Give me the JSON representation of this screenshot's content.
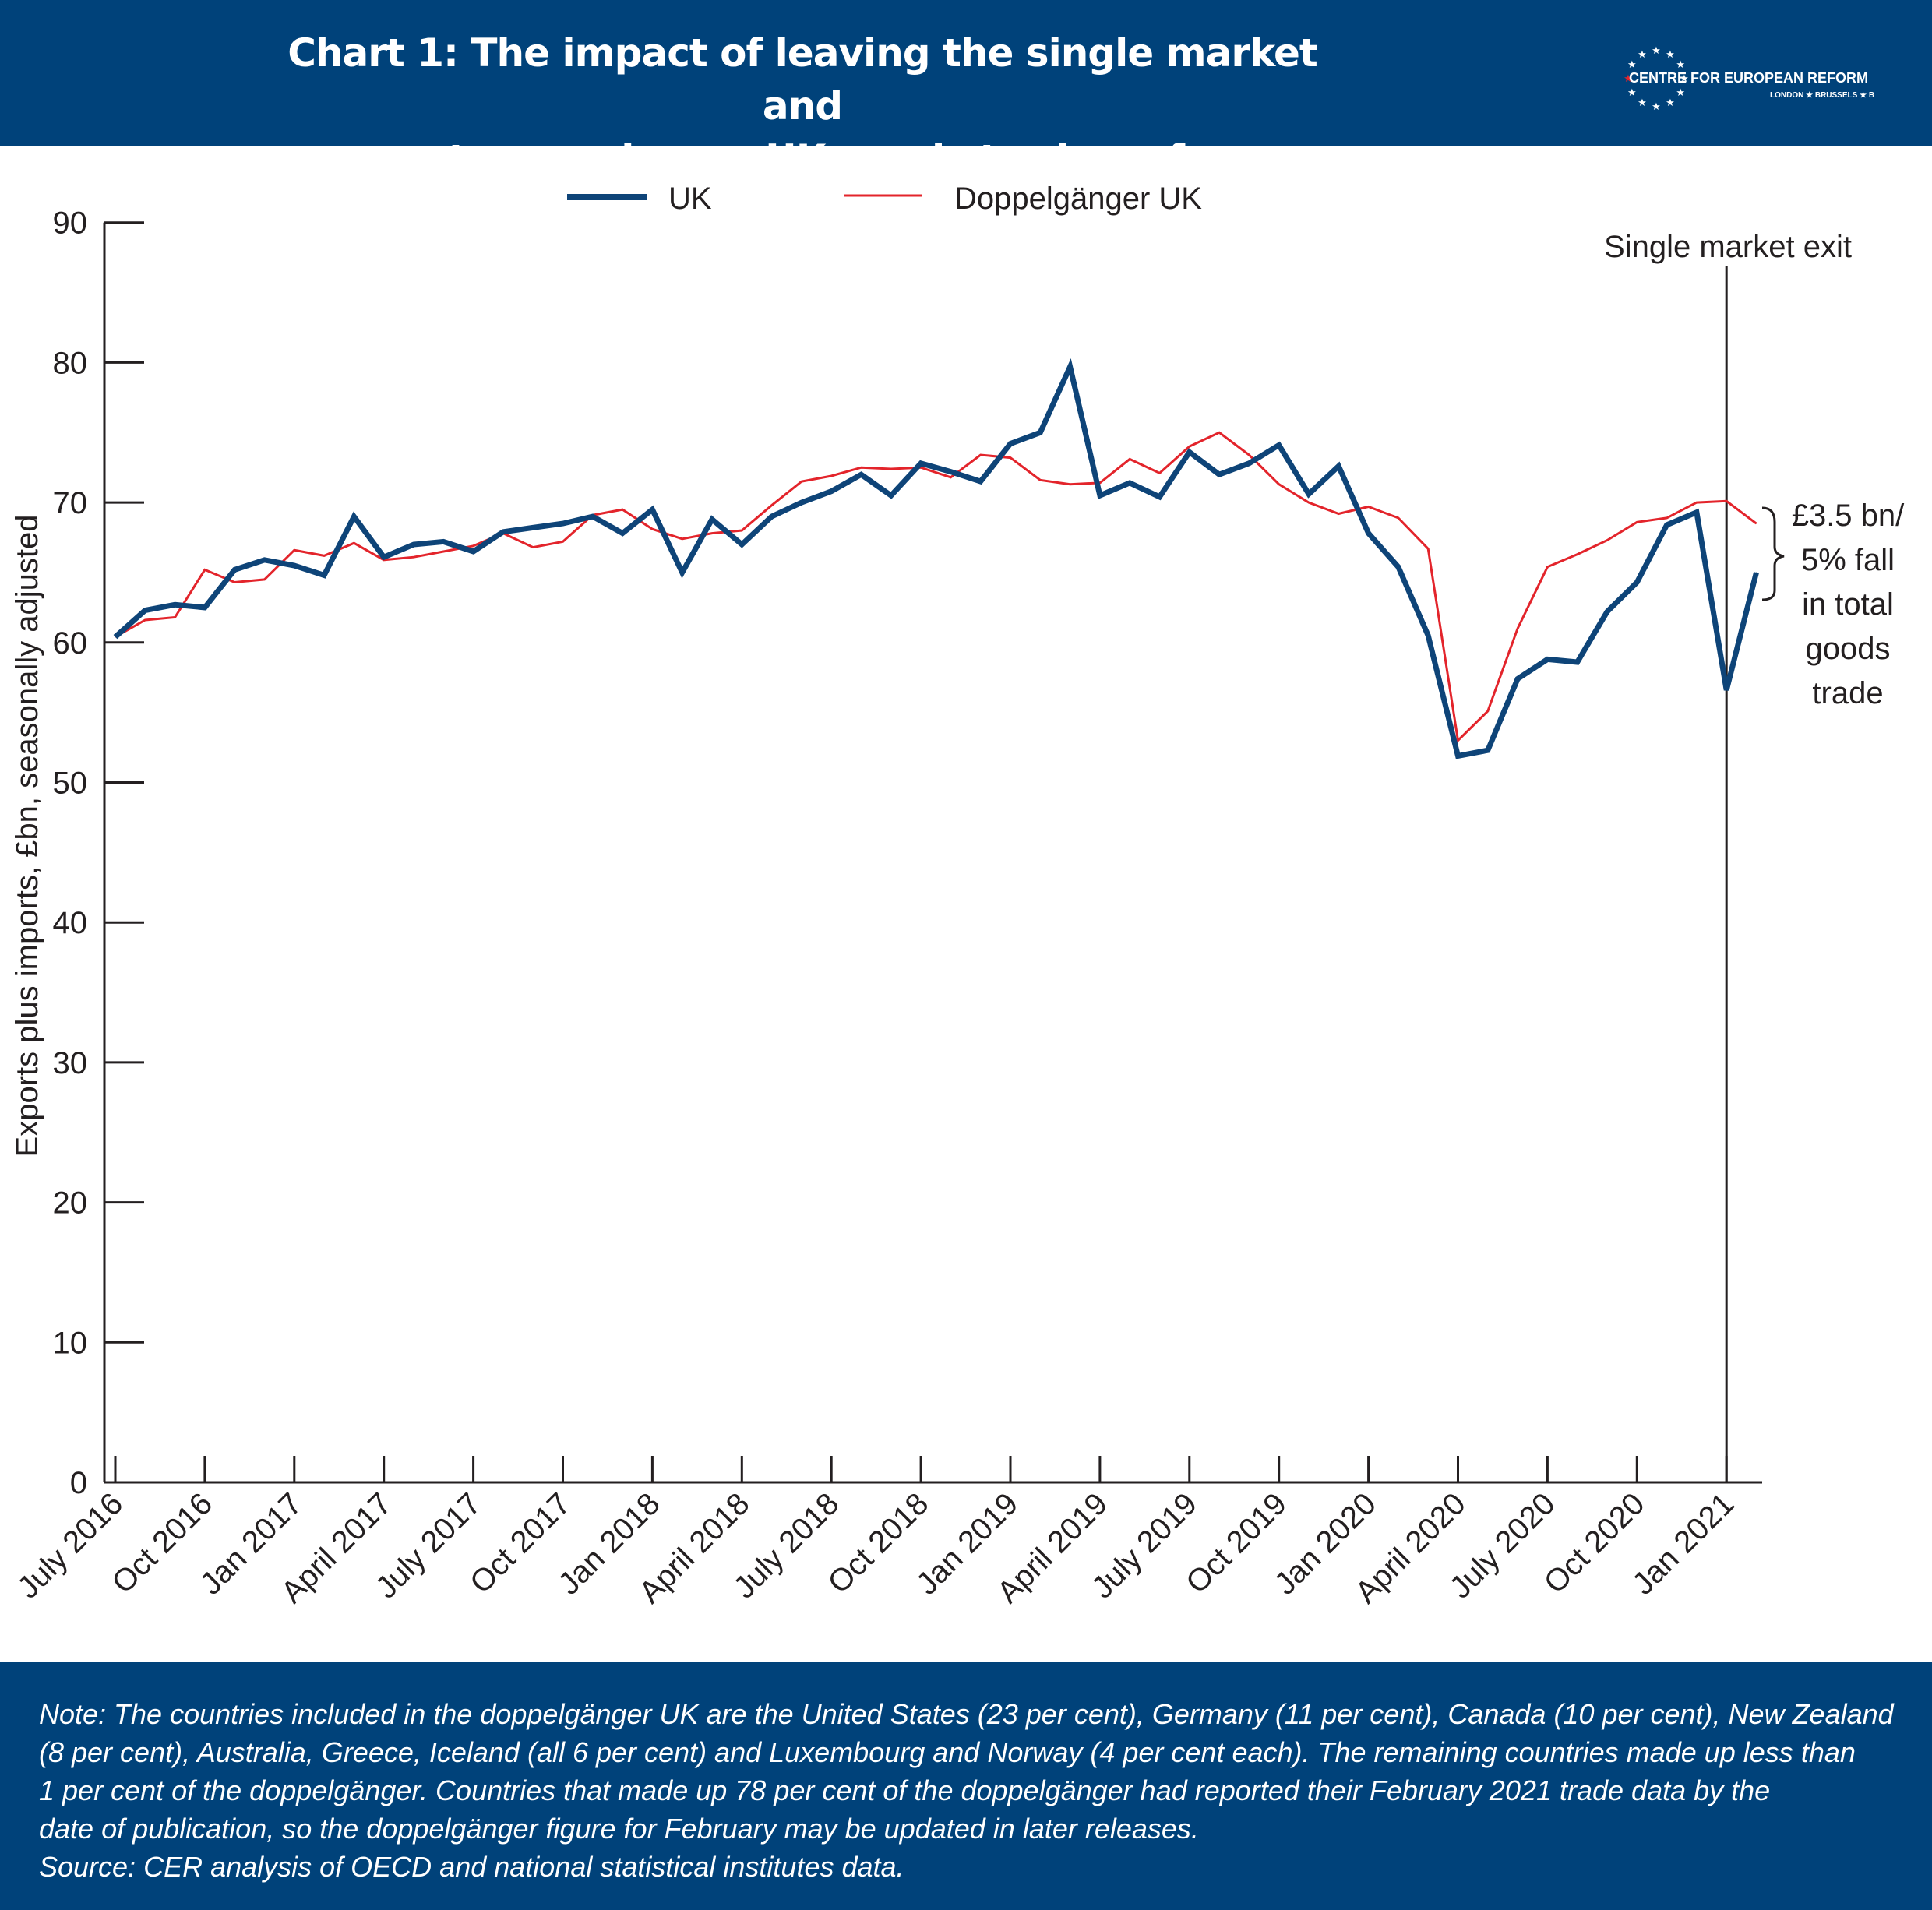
{
  "header": {
    "title_line1": "Chart 1: The impact of leaving the single market and",
    "title_line2": "customs union on UK goods trade so far",
    "logo_name": "CENTRE FOR EUROPEAN REFORM",
    "logo_cities": "LONDON ★ BRUSSELS ★ BERLIN"
  },
  "colors": {
    "brand": "#00427a",
    "uk_series": "#0e4478",
    "doppelganger_series": "#e3242b"
  },
  "chart_data": {
    "type": "line",
    "ylabel": "Exports plus imports, £bn, seasonally adjusted",
    "ylim": [
      0,
      90
    ],
    "yticks": [
      "0",
      "10",
      "20",
      "30",
      "40",
      "50",
      "60",
      "70",
      "80",
      "90"
    ],
    "xtick_labels": [
      "July 2016",
      "Oct 2016",
      "Jan 2017",
      "April 2017",
      "July 2017",
      "Oct 2017",
      "Jan 2018",
      "April 2018",
      "July 2018",
      "Oct 2018",
      "Jan 2019",
      "April 2019",
      "July 2019",
      "Oct 2019",
      "Jan 2020",
      "April 2020",
      "July 2020",
      "Oct 2020",
      "Jan 2021"
    ],
    "x_start": "2016-07",
    "x_end": "2021-02",
    "legend_position": "top-center",
    "series": [
      {
        "name": "UK",
        "color": "#0e4478",
        "values": [
          60.4,
          62.3,
          62.7,
          62.5,
          65.2,
          65.9,
          65.5,
          64.8,
          69.0,
          66.1,
          67.0,
          67.2,
          66.5,
          67.9,
          68.2,
          68.5,
          69.0,
          67.8,
          69.5,
          65.0,
          68.8,
          67.0,
          69.0,
          70.0,
          70.8,
          72.0,
          70.5,
          72.8,
          72.2,
          71.5,
          74.2,
          75.0,
          79.7,
          70.5,
          71.4,
          70.4,
          73.6,
          72.0,
          72.8,
          74.1,
          70.6,
          72.6,
          67.8,
          65.4,
          60.5,
          51.9,
          52.3,
          57.4,
          58.8,
          58.6,
          62.2,
          64.3,
          68.4,
          69.3,
          56.6,
          65.0
        ]
      },
      {
        "name": "Doppelgänger UK",
        "color": "#e3242b",
        "values": [
          60.4,
          61.6,
          61.8,
          65.2,
          64.3,
          64.5,
          66.6,
          66.2,
          67.1,
          65.9,
          66.1,
          66.5,
          66.9,
          67.8,
          66.8,
          67.2,
          69.1,
          69.5,
          68.1,
          67.4,
          67.8,
          68.0,
          69.8,
          71.5,
          71.9,
          72.5,
          72.4,
          72.5,
          71.8,
          73.4,
          73.2,
          71.6,
          71.3,
          71.4,
          73.1,
          72.1,
          74.0,
          75.0,
          73.4,
          71.3,
          70.0,
          69.2,
          69.7,
          68.9,
          66.7,
          53.0,
          55.1,
          61.0,
          65.4,
          66.3,
          67.3,
          68.6,
          68.9,
          70.0,
          70.1,
          68.5
        ]
      }
    ],
    "annotations": {
      "exit_label": "Single market exit",
      "exit_x": "2021-01",
      "fall_lines": [
        "£3.5 bn/",
        "5% fall",
        "in total",
        "goods",
        "trade"
      ]
    }
  },
  "footer": {
    "note_lines": [
      "Note: The countries included in the doppelgänger UK are the United States (23 per cent), Germany (11 per cent), Canada (10 per cent), New Zealand",
      "(8 per cent), Australia, Greece, Iceland (all 6 per cent) and Luxembourg and Norway (4 per cent each). The remaining countries made up less than",
      "1 per cent of the doppelgänger. Countries that made up 78 per cent of the doppelgänger had reported their February 2021 trade data by the",
      "date of publication, so the doppelgänger figure for February may be updated in later releases."
    ],
    "source": "Source: CER analysis of OECD and national statistical institutes data."
  }
}
